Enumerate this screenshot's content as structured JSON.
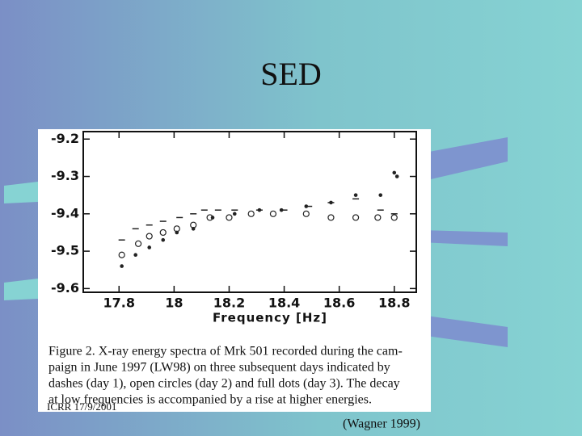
{
  "slide": {
    "title": "SED",
    "footer": "ICRR 17/9/2001",
    "credit": "(Wagner 1999)",
    "caption": [
      "Figure 2.   X-ray energy spectra of Mrk 501 recorded during the cam-",
      "paign in June 1997 (LW98) on three subsequent days indicated by",
      "dashes (day 1), open circles (day 2) and full dots (day 3).  The decay",
      "at low frequencies is accompanied by a rise at higher energies."
    ]
  },
  "chart_data": {
    "type": "scatter",
    "x_label": "Frequency [Hz]",
    "xlim": [
      17.67,
      18.88
    ],
    "xticks": [
      17.8,
      18,
      18.2,
      18.4,
      18.6,
      18.8
    ],
    "ylim": [
      -9.61,
      -9.18
    ],
    "yticks": [
      -9.2,
      -9.3,
      -9.4,
      -9.5,
      -9.6
    ],
    "series": [
      {
        "marker": "dash",
        "color": "#222222",
        "x": [
          17.81,
          17.86,
          17.91,
          17.96,
          18.02,
          18.07,
          18.11,
          18.16,
          18.22,
          18.31,
          18.4,
          18.49,
          18.57,
          18.66,
          18.75,
          18.8
        ],
        "values": [
          -9.47,
          -9.44,
          -9.43,
          -9.42,
          -9.41,
          -9.4,
          -9.39,
          -9.39,
          -9.39,
          -9.39,
          -9.39,
          -9.38,
          -9.37,
          -9.36,
          -9.39,
          -9.4
        ]
      },
      {
        "marker": "circle",
        "color": "#222222",
        "x": [
          17.81,
          17.87,
          17.91,
          17.96,
          18.01,
          18.07,
          18.13,
          18.2,
          18.28,
          18.36,
          18.48,
          18.57,
          18.66,
          18.74,
          18.8
        ],
        "values": [
          -9.51,
          -9.48,
          -9.46,
          -9.45,
          -9.44,
          -9.43,
          -9.41,
          -9.41,
          -9.4,
          -9.4,
          -9.4,
          -9.41,
          -9.41,
          -9.41,
          -9.41
        ]
      },
      {
        "marker": "dot",
        "color": "#222222",
        "x": [
          17.81,
          17.86,
          17.91,
          17.96,
          18.01,
          18.07,
          18.14,
          18.22,
          18.31,
          18.39,
          18.48,
          18.57,
          18.66,
          18.75,
          18.8,
          18.81
        ],
        "values": [
          -9.54,
          -9.51,
          -9.49,
          -9.47,
          -9.45,
          -9.44,
          -9.41,
          -9.4,
          -9.39,
          -9.39,
          -9.38,
          -9.37,
          -9.35,
          -9.35,
          -9.29,
          -9.3
        ]
      }
    ]
  }
}
